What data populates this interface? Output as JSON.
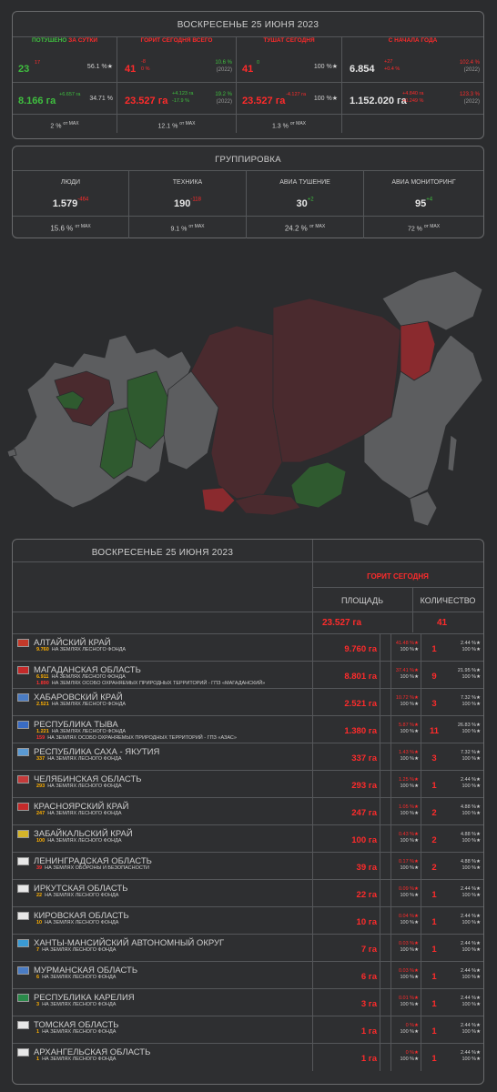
{
  "summary": {
    "date": "ВОСКРЕСЕНЬЕ 25 ИЮНЯ 2023",
    "cols": [
      {
        "label_a": "ПОТУШЕНО",
        "label_b": "ЗА СУТКИ",
        "count": "23",
        "count_sup": "17",
        "count_pct": "56.1 %★",
        "area": "8.166 га",
        "area_sup": "+6.657 га",
        "area_pct": "34.71 %",
        "foot": "2 %",
        "foot_sup": "от MAX"
      },
      {
        "label_a": "ГОРИТ",
        "label_b": "СЕГОДНЯ ВСЕГО",
        "count": "41",
        "count_sup": "-8",
        "count_sup2": "0 %",
        "count_r1": "10.6 %",
        "count_r2": "(2022)",
        "area": "23.527 га",
        "area_sup": "+4.123 га",
        "area_sup2": "-17.9 %",
        "area_r1": "19.2 %",
        "area_r2": "(2022)",
        "foot": "12.1 %",
        "foot_sup": "от MAX"
      },
      {
        "label_a": "ТУШАТ",
        "label_b": "СЕГОДНЯ",
        "count": "41",
        "count_sup": "0",
        "count_pct": "100 %★",
        "area": "23.527 га",
        "area_sup": "-4.127 га",
        "area_pct": "100 %★",
        "foot": "1.3 %",
        "foot_sup": "от MAX"
      },
      {
        "label_a": "С НАЧАЛА ГОДА",
        "label_b": "",
        "count": "6.854",
        "count_sup": "+27",
        "count_sup2": "+0.4 %",
        "count_r1": "102.4 %",
        "count_r2": "(2022)",
        "area": "1.152.020 га",
        "area_sup": "+4.840 га",
        "area_sup2": "+0.249 %",
        "area_r1": "123.3 %",
        "area_r2": "(2022)",
        "foot": "",
        "foot_sup": ""
      }
    ]
  },
  "group": {
    "title": "ГРУППИРОВКА",
    "cols": [
      {
        "label": "ЛЮДИ",
        "value": "1.579",
        "sup": "-464",
        "foot": "15.6 %",
        "foot_sup": "от MAX"
      },
      {
        "label": "ТЕХНИКА",
        "value": "190",
        "sup": "-118",
        "foot": "9.1 %",
        "foot_sup": "от MAX"
      },
      {
        "label": "АВИА ТУШЕНИЕ",
        "value": "30",
        "sup": "+2",
        "foot": "24.2 %",
        "foot_sup": "от MAX"
      },
      {
        "label": "АВИА МОНИТОРИНГ",
        "value": "95",
        "sup": "+4",
        "foot": "72 %",
        "foot_sup": "от MAX"
      }
    ]
  },
  "table": {
    "date": "ВОСКРЕСЕНЬЕ 25 ИЮНЯ 2023",
    "group_header": "ГОРИТ СЕГОДНЯ",
    "col_area": "ПЛОЩАДЬ",
    "col_qty": "КОЛИЧЕСТВО",
    "total_area": "23.527 га",
    "total_qty": "41",
    "rows": [
      {
        "name": "АЛТАЙСКИЙ КРАЙ",
        "flag": "#c43a2a",
        "subs": [
          {
            "v": "9.760",
            "t": "НА ЗЕМЛЯХ ЛЕСНОГО ФОНДА",
            "red": false
          }
        ],
        "area": "9.760 га",
        "ap1": "41.48 %★",
        "ap2": "100 %★",
        "qty": "1",
        "qp1": "2.44 %★",
        "qp2": "100 %★"
      },
      {
        "name": "МАГАДАНСКАЯ ОБЛАСТЬ",
        "flag": "#c42a2a",
        "subs": [
          {
            "v": "6.911",
            "t": "НА ЗЕМЛЯХ ЛЕСНОГО ФОНДА",
            "red": false
          },
          {
            "v": "1.890",
            "t": "НА ЗЕМЛЯХ ОСОБО ОХРАНЯЕМЫХ ПРИРОДНЫХ ТЕРРИТОРИЙ - ГПЗ «МАГАДАНСКИЙ»",
            "red": true
          }
        ],
        "area": "8.801 га",
        "ap1": "37.41 %★",
        "ap2": "100 %★",
        "qty": "9",
        "qp1": "21.95 %★",
        "qp2": "100 %★"
      },
      {
        "name": "ХАБАРОВСКИЙ КРАЙ",
        "flag": "#4a7cc4",
        "subs": [
          {
            "v": "2.521",
            "t": "НА ЗЕМЛЯХ ЛЕСНОГО ФОНДА",
            "red": false
          }
        ],
        "area": "2.521 га",
        "ap1": "10.72 %★",
        "ap2": "100 %★",
        "qty": "3",
        "qp1": "7.32 %★",
        "qp2": "100 %★"
      },
      {
        "name": "РЕСПУБЛИКА ТЫВА",
        "flag": "#3a6cc4",
        "subs": [
          {
            "v": "1.221",
            "t": "НА ЗЕМЛЯХ ЛЕСНОГО ФОНДА",
            "red": false
          },
          {
            "v": "159",
            "t": "НА ЗЕМЛЯХ ОСОБО ОХРАНЯЕМЫХ ПРИРОДНЫХ ТЕРРИТОРИЙ - ГПЗ «АЗАС»",
            "red": true
          }
        ],
        "area": "1.380 га",
        "ap1": "5.87 %★",
        "ap2": "100 %★",
        "qty": "11",
        "qp1": "26.83 %★",
        "qp2": "100 %★"
      },
      {
        "name": "РЕСПУБЛИКА САХА - ЯКУТИЯ",
        "flag": "#5a9ad4",
        "subs": [
          {
            "v": "337",
            "t": "НА ЗЕМЛЯХ ЛЕСНОГО ФОНДА",
            "red": false
          }
        ],
        "area": "337 га",
        "ap1": "1.43 %★",
        "ap2": "100 %★",
        "qty": "3",
        "qp1": "7.32 %★",
        "qp2": "100 %★"
      },
      {
        "name": "ЧЕЛЯБИНСКАЯ ОБЛАСТЬ",
        "flag": "#c43a3a",
        "subs": [
          {
            "v": "293",
            "t": "НА ЗЕМЛЯХ ЛЕСНОГО ФОНДА",
            "red": false
          }
        ],
        "area": "293 га",
        "ap1": "1.25 %★",
        "ap2": "100 %★",
        "qty": "1",
        "qp1": "2.44 %★",
        "qp2": "100 %★"
      },
      {
        "name": "КРАСНОЯРСКИЙ КРАЙ",
        "flag": "#c42a2a",
        "subs": [
          {
            "v": "247",
            "t": "НА ЗЕМЛЯХ ЛЕСНОГО ФОНДА",
            "red": false
          }
        ],
        "area": "247 га",
        "ap1": "1.05 %★",
        "ap2": "100 %★",
        "qty": "2",
        "qp1": "4.88 %★",
        "qp2": "100 %★"
      },
      {
        "name": "ЗАБАЙКАЛЬСКИЙ КРАЙ",
        "flag": "#d4b42a",
        "subs": [
          {
            "v": "100",
            "t": "НА ЗЕМЛЯХ ЛЕСНОГО ФОНДА",
            "red": false
          }
        ],
        "area": "100 га",
        "ap1": "0.43 %★",
        "ap2": "100 %★",
        "qty": "2",
        "qp1": "4.88 %★",
        "qp2": "100 %★"
      },
      {
        "name": "ЛЕНИНГРАДСКАЯ ОБЛАСТЬ",
        "flag": "#e8e8e8",
        "subs": [
          {
            "v": "39",
            "t": "НА ЗЕМЛЯХ ОБОРОНЫ И БЕЗОПАСНОСТИ",
            "red": true
          }
        ],
        "area": "39 га",
        "ap1": "0.17 %★",
        "ap2": "100 %★",
        "qty": "2",
        "qp1": "4.88 %★",
        "qp2": "100 %★"
      },
      {
        "name": "ИРКУТСКАЯ ОБЛАСТЬ",
        "flag": "#e8e8e8",
        "subs": [
          {
            "v": "22",
            "t": "НА ЗЕМЛЯХ ЛЕСНОГО ФОНДА",
            "red": false
          }
        ],
        "area": "22 га",
        "ap1": "0.09 %★",
        "ap2": "100 %★",
        "qty": "1",
        "qp1": "2.44 %★",
        "qp2": "100 %★"
      },
      {
        "name": "КИРОВСКАЯ ОБЛАСТЬ",
        "flag": "#e8e8e8",
        "subs": [
          {
            "v": "10",
            "t": "НА ЗЕМЛЯХ ЛЕСНОГО ФОНДА",
            "red": false
          }
        ],
        "area": "10 га",
        "ap1": "0.04 %★",
        "ap2": "100 %★",
        "qty": "1",
        "qp1": "2.44 %★",
        "qp2": "100 %★"
      },
      {
        "name": "ХАНТЫ-МАНСИЙСКИЙ АВТОНОМНЫЙ ОКРУГ",
        "flag": "#3a9ad4",
        "subs": [
          {
            "v": "7",
            "t": "НА ЗЕМЛЯХ ЛЕСНОГО ФОНДА",
            "red": false
          }
        ],
        "area": "7 га",
        "ap1": "0.03 %★",
        "ap2": "100 %★",
        "qty": "1",
        "qp1": "2.44 %★",
        "qp2": "100 %★"
      },
      {
        "name": "МУРМАНСКАЯ ОБЛАСТЬ",
        "flag": "#4a7cc4",
        "subs": [
          {
            "v": "6",
            "t": "НА ЗЕМЛЯХ ЛЕСНОГО ФОНДА",
            "red": false
          }
        ],
        "area": "6 га",
        "ap1": "0.03 %★",
        "ap2": "100 %★",
        "qty": "1",
        "qp1": "2.44 %★",
        "qp2": "100 %★"
      },
      {
        "name": "РЕСПУБЛИКА КАРЕЛИЯ",
        "flag": "#2a8a4a",
        "subs": [
          {
            "v": "3",
            "t": "НА ЗЕМЛЯХ ЛЕСНОГО ФОНДА",
            "red": false
          }
        ],
        "area": "3 га",
        "ap1": "0.01 %★",
        "ap2": "100 %★",
        "qty": "1",
        "qp1": "2.44 %★",
        "qp2": "100 %★"
      },
      {
        "name": "ТОМСКАЯ ОБЛАСТЬ",
        "flag": "#e8e8e8",
        "subs": [
          {
            "v": "1",
            "t": "НА ЗЕМЛЯХ ЛЕСНОГО ФОНДА",
            "red": false
          }
        ],
        "area": "1 га",
        "ap1": "0 %★",
        "ap2": "100 %★",
        "qty": "1",
        "qp1": "2.44 %★",
        "qp2": "100 %★"
      },
      {
        "name": "АРХАНГЕЛЬСКАЯ ОБЛАСТЬ",
        "flag": "#e8e8e8",
        "subs": [
          {
            "v": "1",
            "t": "НА ЗЕМЛЯХ ЛЕСНОГО ФОНДА",
            "red": false
          }
        ],
        "area": "1 га",
        "ap1": "0 %★",
        "ap2": "100 %★",
        "qty": "1",
        "qp1": "2.44 %★",
        "qp2": "100 %★"
      }
    ]
  },
  "colors": {
    "green": "#3fbf3f",
    "red": "#ff2b2b",
    "orange": "#ffb000",
    "map_gray": "#5c5d5f",
    "map_burning": "#4a2a2e",
    "map_extinguished": "#2f5a2f",
    "map_hot": "#8a2a2e"
  }
}
